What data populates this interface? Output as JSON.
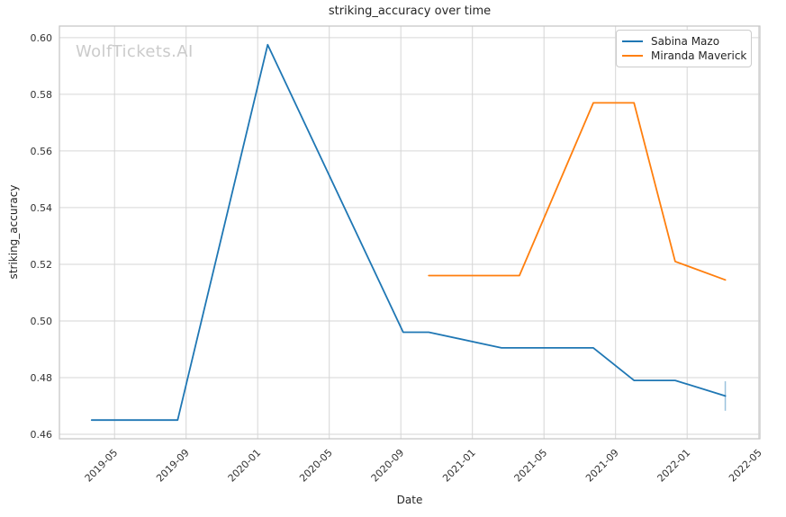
{
  "watermark": {
    "text": "WolfTickets.AI",
    "color": "#cbcbcb"
  },
  "colors": {
    "background": "#ffffff",
    "grid": "#d6d6d6",
    "spine": "#c3c3c3",
    "text": "#262626",
    "tick_text": "#333333",
    "series_blue": "#1f77b4",
    "series_orange": "#ff7f0e"
  },
  "chart_data": {
    "type": "line",
    "title": "striking_accuracy over time",
    "xlabel": "Date",
    "ylabel": "striking_accuracy",
    "grid": true,
    "legend_position": "upper right",
    "x_tick_labels": [
      "2019-05",
      "2019-09",
      "2020-01",
      "2020-05",
      "2020-09",
      "2021-01",
      "2021-05",
      "2021-09",
      "2022-01",
      "2022-05"
    ],
    "y_ticks": [
      0.46,
      0.48,
      0.5,
      0.52,
      0.54,
      0.56,
      0.58,
      0.6
    ],
    "xlim": [
      "2019-01-29",
      "2022-05-03"
    ],
    "ylim": [
      0.4584,
      0.6041
    ],
    "series": [
      {
        "name": "Sabina Mazo",
        "color": "#1f77b4",
        "points": [
          {
            "date": "2019-03-23",
            "value": 0.465
          },
          {
            "date": "2019-08-17",
            "value": 0.465
          },
          {
            "date": "2020-01-18",
            "value": 0.5975
          },
          {
            "date": "2020-09-05",
            "value": 0.496
          },
          {
            "date": "2020-10-18",
            "value": 0.496
          },
          {
            "date": "2021-02-20",
            "value": 0.4905
          },
          {
            "date": "2021-07-24",
            "value": 0.4905
          },
          {
            "date": "2021-10-02",
            "value": 0.479
          },
          {
            "date": "2021-12-11",
            "value": 0.479
          },
          {
            "date": "2022-03-05",
            "value": 0.4735,
            "error": 0.0052
          }
        ]
      },
      {
        "name": "Miranda Maverick",
        "color": "#ff7f0e",
        "points": [
          {
            "date": "2020-10-18",
            "value": 0.516
          },
          {
            "date": "2021-03-20",
            "value": 0.516
          },
          {
            "date": "2021-07-24",
            "value": 0.577
          },
          {
            "date": "2021-10-02",
            "value": 0.577
          },
          {
            "date": "2021-12-11",
            "value": 0.521
          },
          {
            "date": "2022-03-05",
            "value": 0.5145
          }
        ]
      }
    ]
  }
}
